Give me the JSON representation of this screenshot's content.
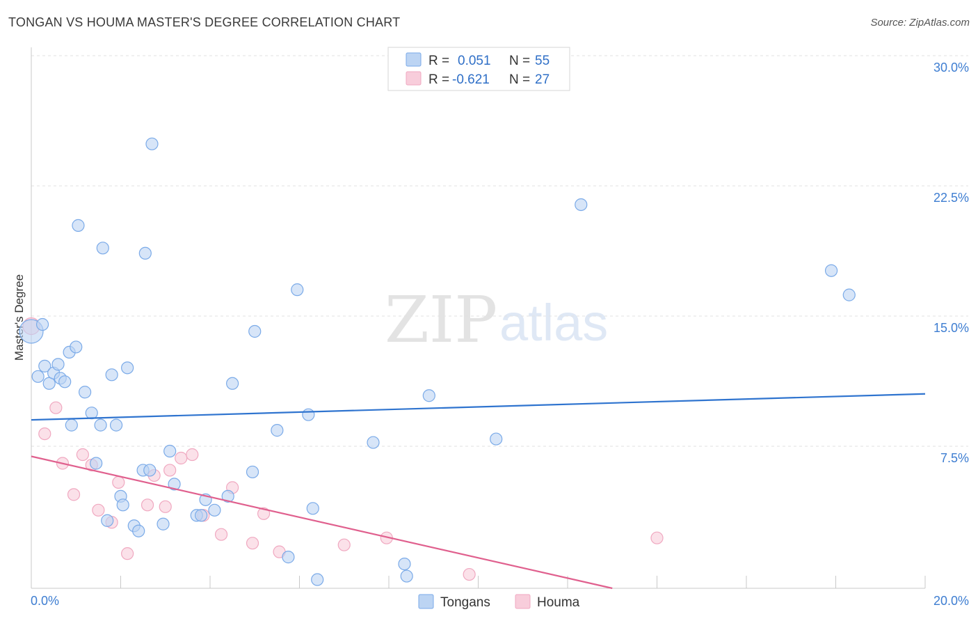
{
  "chart_data": {
    "type": "scatter",
    "title": "TONGAN VS HOUMA MASTER'S DEGREE CORRELATION CHART",
    "source": "Source: ZipAtlas.com",
    "ylabel": "Master's Degree",
    "xlim": [
      0,
      20
    ],
    "ylim": [
      0,
      30
    ],
    "x_tick_labels": [
      "0.0%",
      "20.0%"
    ],
    "y_ticks": [
      7.5,
      15.0,
      22.5,
      30.0
    ],
    "y_tick_labels": [
      "7.5%",
      "15.0%",
      "22.5%",
      "30.0%"
    ],
    "watermark": {
      "part1": "ZIP",
      "part2": "atlas"
    },
    "legend": {
      "r_label": "R =",
      "n_label": "N =",
      "entries": [
        {
          "r": "0.051",
          "n": "55"
        },
        {
          "r": "-0.621",
          "n": "27"
        }
      ]
    },
    "series": [
      {
        "name": "Tongans",
        "color": "#7aaae8",
        "fill": "#bcd4f3",
        "line_color": "#2f74cf",
        "trend": [
          [
            0,
            9.7
          ],
          [
            20,
            11.2
          ]
        ],
        "points": [
          [
            0.0,
            14.8
          ],
          [
            0.15,
            12.2
          ],
          [
            0.25,
            15.2
          ],
          [
            0.3,
            12.8
          ],
          [
            0.4,
            11.8
          ],
          [
            0.5,
            12.4
          ],
          [
            0.6,
            12.9
          ],
          [
            0.65,
            12.1
          ],
          [
            0.75,
            11.9
          ],
          [
            0.85,
            13.6
          ],
          [
            0.9,
            9.4
          ],
          [
            1.0,
            13.9
          ],
          [
            1.05,
            20.9
          ],
          [
            1.2,
            11.3
          ],
          [
            1.35,
            10.1
          ],
          [
            1.45,
            7.2
          ],
          [
            1.55,
            9.4
          ],
          [
            1.6,
            19.6
          ],
          [
            1.7,
            3.9
          ],
          [
            1.8,
            12.3
          ],
          [
            1.9,
            9.4
          ],
          [
            2.0,
            5.3
          ],
          [
            2.05,
            4.8
          ],
          [
            2.15,
            12.7
          ],
          [
            2.3,
            3.6
          ],
          [
            2.4,
            3.3
          ],
          [
            2.5,
            6.8
          ],
          [
            2.55,
            19.3
          ],
          [
            2.65,
            6.8
          ],
          [
            2.7,
            25.6
          ],
          [
            2.95,
            3.7
          ],
          [
            3.1,
            7.9
          ],
          [
            3.2,
            6.0
          ],
          [
            3.7,
            4.2
          ],
          [
            3.8,
            4.2
          ],
          [
            3.9,
            5.1
          ],
          [
            4.1,
            4.5
          ],
          [
            4.4,
            5.3
          ],
          [
            4.5,
            11.8
          ],
          [
            4.95,
            6.7
          ],
          [
            5.0,
            14.8
          ],
          [
            5.5,
            9.1
          ],
          [
            5.75,
            1.8
          ],
          [
            5.95,
            17.2
          ],
          [
            6.2,
            10.0
          ],
          [
            6.3,
            4.6
          ],
          [
            6.4,
            0.5
          ],
          [
            7.65,
            8.4
          ],
          [
            8.35,
            1.4
          ],
          [
            8.4,
            0.7
          ],
          [
            8.9,
            11.1
          ],
          [
            10.4,
            8.6
          ],
          [
            12.3,
            22.1
          ],
          [
            17.9,
            18.3
          ],
          [
            18.3,
            16.9
          ]
        ]
      },
      {
        "name": "Houma",
        "color": "#f0a8c0",
        "fill": "#f8cddb",
        "line_color": "#e0608e",
        "trend": [
          [
            0,
            7.6
          ],
          [
            13.0,
            0.0
          ]
        ],
        "points": [
          [
            0.0,
            15.1
          ],
          [
            0.3,
            8.9
          ],
          [
            0.55,
            10.4
          ],
          [
            0.7,
            7.2
          ],
          [
            0.95,
            5.4
          ],
          [
            1.15,
            7.7
          ],
          [
            1.35,
            7.1
          ],
          [
            1.5,
            4.5
          ],
          [
            1.8,
            3.8
          ],
          [
            1.95,
            6.1
          ],
          [
            2.15,
            2.0
          ],
          [
            2.6,
            4.8
          ],
          [
            2.75,
            6.5
          ],
          [
            3.0,
            4.7
          ],
          [
            3.1,
            6.8
          ],
          [
            3.35,
            7.5
          ],
          [
            3.6,
            7.7
          ],
          [
            3.85,
            4.2
          ],
          [
            4.25,
            3.1
          ],
          [
            4.5,
            5.8
          ],
          [
            4.95,
            2.6
          ],
          [
            5.2,
            4.3
          ],
          [
            5.55,
            2.1
          ],
          [
            7.0,
            2.5
          ],
          [
            7.95,
            2.9
          ],
          [
            9.8,
            0.8
          ],
          [
            14.0,
            2.9
          ]
        ]
      }
    ]
  }
}
